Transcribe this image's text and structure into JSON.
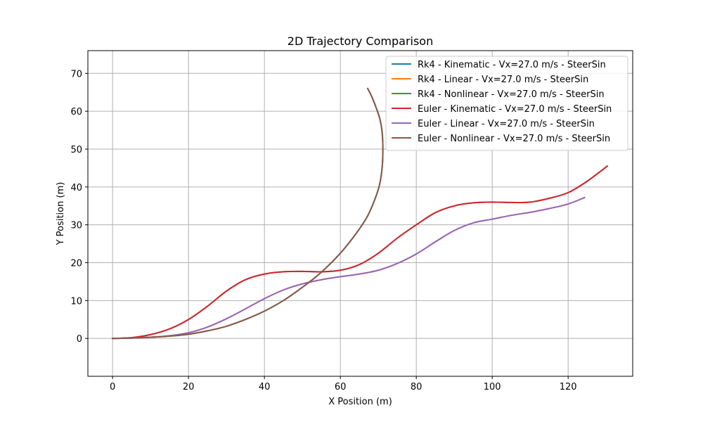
{
  "chart_data": {
    "type": "line",
    "title": "2D Trajectory Comparison",
    "xlabel": "X Position (m)",
    "ylabel": "Y Position (m)",
    "xlim": [
      -6.5,
      137
    ],
    "ylim": [
      -10,
      76
    ],
    "xticks": [
      0,
      20,
      40,
      60,
      80,
      100,
      120
    ],
    "yticks": [
      0,
      10,
      20,
      30,
      40,
      50,
      60,
      70
    ],
    "grid": true,
    "legend_position": "top-right",
    "series": [
      {
        "name": "Rk4 - Kinematic - Vx=27.0 m/s - SteerSin",
        "color": "#1f77b4",
        "x": [
          0,
          5,
          10,
          15,
          20,
          25,
          30,
          35,
          40,
          45,
          50,
          55,
          60,
          65,
          70,
          75,
          80,
          85,
          90,
          95,
          100,
          105,
          110,
          115,
          120,
          125,
          130.3
        ],
        "y": [
          0,
          0.2,
          1.0,
          2.5,
          5.0,
          8.5,
          12.5,
          15.5,
          17.0,
          17.6,
          17.7,
          17.6,
          18.0,
          19.5,
          22.5,
          26.5,
          30.0,
          33.2,
          35.0,
          35.8,
          36.0,
          35.9,
          36.0,
          37.0,
          38.5,
          41.5,
          45.5
        ]
      },
      {
        "name": "Rk4 - Linear - Vx=27.0 m/s - SteerSin",
        "color": "#ff7f0e",
        "x": [
          0,
          5,
          10,
          15,
          20,
          25,
          30,
          35,
          40,
          45,
          50,
          55,
          60,
          65,
          70,
          75,
          80,
          85,
          90,
          95,
          100,
          105,
          110,
          115,
          120,
          124.3
        ],
        "y": [
          0,
          0.1,
          0.3,
          0.7,
          1.5,
          3.0,
          5.2,
          7.8,
          10.5,
          12.8,
          14.4,
          15.5,
          16.3,
          17.0,
          18.0,
          19.8,
          22.3,
          25.5,
          28.5,
          30.5,
          31.5,
          32.5,
          33.3,
          34.3,
          35.5,
          37.2
        ]
      },
      {
        "name": "Rk4 - Nonlinear - Vx=27.0 m/s - SteerSin",
        "color": "#2ca02c",
        "x": [
          0,
          5,
          10,
          15,
          20,
          25,
          30,
          35,
          40,
          45,
          50,
          55,
          60,
          64,
          67,
          69,
          70.3,
          71,
          71.2,
          71,
          70.4,
          69.4,
          68.3,
          67.2
        ],
        "y": [
          0,
          0.1,
          0.3,
          0.6,
          1.1,
          2.0,
          3.2,
          5.0,
          7.2,
          10.0,
          13.5,
          17.5,
          22.5,
          27.5,
          32.0,
          36.5,
          40.5,
          45.0,
          50.0,
          54.5,
          58.0,
          61.0,
          63.8,
          66.0
        ]
      },
      {
        "name": "Euler - Kinematic - Vx=27.0 m/s - SteerSin",
        "color": "#d62728",
        "x": [
          0,
          5,
          10,
          15,
          20,
          25,
          30,
          35,
          40,
          45,
          50,
          55,
          60,
          65,
          70,
          75,
          80,
          85,
          90,
          95,
          100,
          105,
          110,
          115,
          120,
          125,
          130.3
        ],
        "y": [
          0,
          0.2,
          1.0,
          2.5,
          5.0,
          8.5,
          12.5,
          15.5,
          17.0,
          17.6,
          17.7,
          17.6,
          18.0,
          19.5,
          22.5,
          26.5,
          30.0,
          33.2,
          35.0,
          35.8,
          36.0,
          35.9,
          36.0,
          37.0,
          38.5,
          41.5,
          45.5
        ]
      },
      {
        "name": "Euler - Linear - Vx=27.0 m/s - SteerSin",
        "color": "#9467bd",
        "x": [
          0,
          5,
          10,
          15,
          20,
          25,
          30,
          35,
          40,
          45,
          50,
          55,
          60,
          65,
          70,
          75,
          80,
          85,
          90,
          95,
          100,
          105,
          110,
          115,
          120,
          124.3
        ],
        "y": [
          0,
          0.1,
          0.3,
          0.7,
          1.5,
          3.0,
          5.2,
          7.8,
          10.5,
          12.8,
          14.4,
          15.5,
          16.3,
          17.0,
          18.0,
          19.8,
          22.3,
          25.5,
          28.5,
          30.5,
          31.5,
          32.5,
          33.3,
          34.3,
          35.5,
          37.2
        ]
      },
      {
        "name": "Euler - Nonlinear - Vx=27.0 m/s - SteerSin",
        "color": "#8c564b",
        "x": [
          0,
          5,
          10,
          15,
          20,
          25,
          30,
          35,
          40,
          45,
          50,
          55,
          60,
          64,
          67,
          69,
          70.3,
          71,
          71.2,
          71,
          70.4,
          69.4,
          68.3,
          67.2
        ],
        "y": [
          0,
          0.1,
          0.3,
          0.6,
          1.1,
          2.0,
          3.2,
          5.0,
          7.2,
          10.0,
          13.5,
          17.5,
          22.5,
          27.5,
          32.0,
          36.5,
          40.5,
          45.0,
          50.0,
          54.5,
          58.0,
          61.0,
          63.8,
          66.0
        ]
      }
    ]
  }
}
